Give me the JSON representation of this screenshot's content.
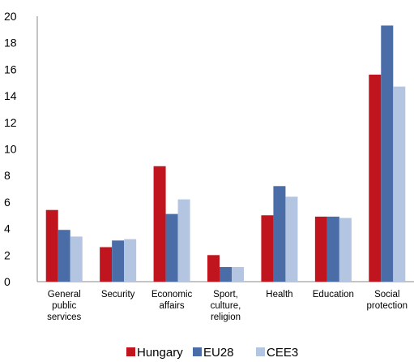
{
  "chart_data": {
    "type": "bar",
    "title": "",
    "xlabel": "",
    "ylabel": "",
    "ylim": [
      0,
      20
    ],
    "yticks": [
      0,
      2,
      4,
      6,
      8,
      10,
      12,
      14,
      16,
      18,
      20
    ],
    "grid": false,
    "legend_position": "bottom",
    "categories": [
      [
        "General",
        "public",
        "services"
      ],
      [
        "Security"
      ],
      [
        "Economic",
        "affairs"
      ],
      [
        "Sport,",
        "culture,",
        "religion"
      ],
      [
        "Health"
      ],
      [
        "Education"
      ],
      [
        "Social",
        "protection"
      ]
    ],
    "series": [
      {
        "name": "Hungary",
        "color": "#c0151f",
        "values": [
          5.4,
          2.6,
          8.7,
          2.0,
          5.0,
          4.9,
          15.6
        ]
      },
      {
        "name": "EU28",
        "color": "#4a6da7",
        "values": [
          3.9,
          3.1,
          5.1,
          1.1,
          7.2,
          4.9,
          19.3
        ]
      },
      {
        "name": "CEE3",
        "color": "#b3c5e0",
        "values": [
          3.4,
          3.2,
          6.2,
          1.1,
          6.4,
          4.8,
          14.7
        ]
      }
    ]
  }
}
